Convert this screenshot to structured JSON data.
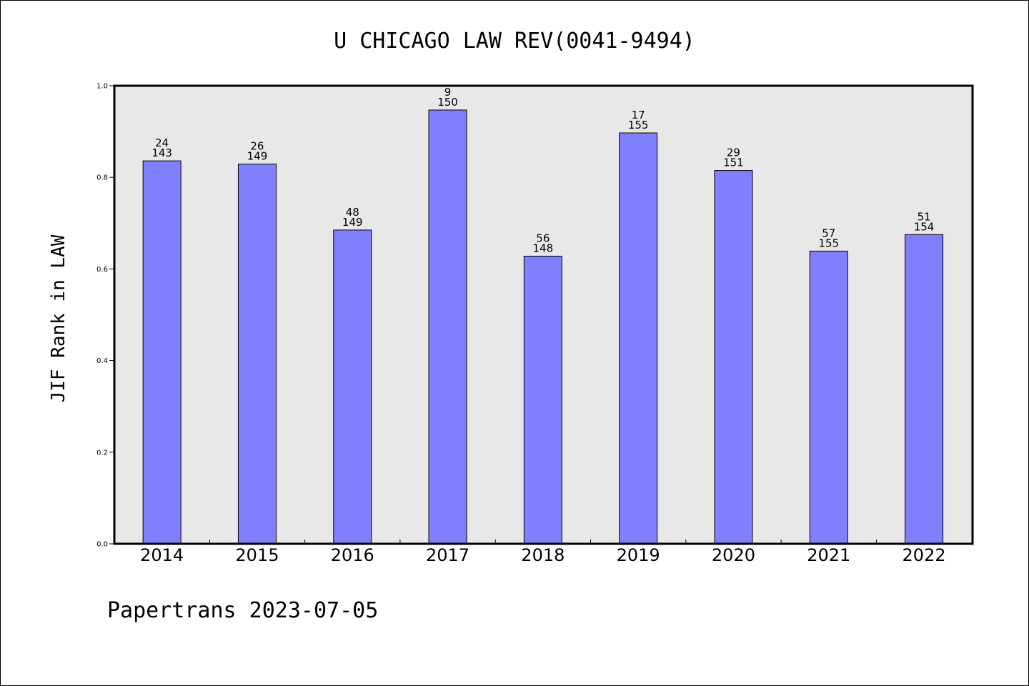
{
  "chart_data": {
    "type": "bar",
    "title": "U CHICAGO LAW REV(0041-9494)",
    "xlabel": "",
    "ylabel": "JIF Rank in LAW",
    "ylim": [
      0,
      1.0
    ],
    "yticks": [
      "0.0",
      "0.2",
      "0.4",
      "0.6",
      "0.8",
      "1.0"
    ],
    "grid": false,
    "categories": [
      "2014",
      "2015",
      "2016",
      "2017",
      "2018",
      "2019",
      "2020",
      "2021",
      "2022"
    ],
    "values": [
      0.836,
      0.829,
      0.685,
      0.947,
      0.628,
      0.897,
      0.815,
      0.639,
      0.675
    ],
    "rank": [
      "24",
      "26",
      "48",
      "9",
      "56",
      "17",
      "29",
      "57",
      "51"
    ],
    "total": [
      "143",
      "149",
      "149",
      "150",
      "148",
      "155",
      "151",
      "155",
      "154"
    ],
    "bar_color": "#8080ff",
    "plot_background": "#e8e8e8"
  },
  "footer": "Papertrans 2023-07-05"
}
